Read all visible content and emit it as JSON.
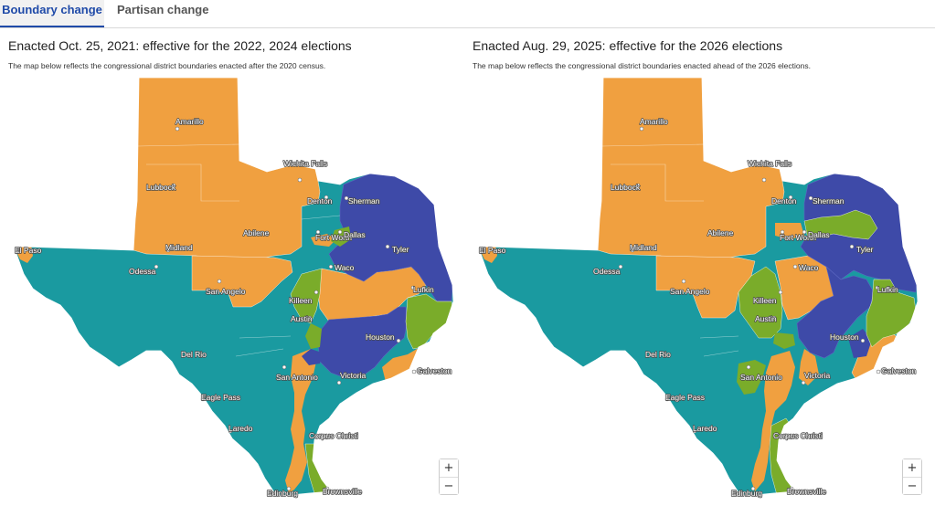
{
  "tabs": {
    "boundary": "Boundary change",
    "partisan": "Partisan change"
  },
  "left": {
    "title": "Enacted Oct. 25, 2021: effective for the 2022, 2024 elections",
    "note": "The map below reflects the congressional district boundaries enacted after the 2020 census."
  },
  "right": {
    "title": "Enacted Aug. 29, 2025: effective for the 2026 elections",
    "note": "The map below reflects the congressional district boundaries enacted ahead of the 2026 elections."
  },
  "cities": {
    "amarillo": "Amarillo",
    "wichita_falls": "Wichita Falls",
    "lubbock": "Lubbock",
    "denton": "Denton",
    "sherman": "Sherman",
    "abilene": "Abilene",
    "fort_worth": "Fort Worth",
    "dallas": "Dallas",
    "tyler": "Tyler",
    "el_paso": "El Paso",
    "midland": "Midland",
    "odessa": "Odessa",
    "waco": "Waco",
    "san_angelo": "San Angelo",
    "lufkin": "Lufkin",
    "killeen": "Killeen",
    "austin": "Austin",
    "houston": "Houston",
    "del_rio": "Del Rio",
    "san_antonio": "San Antonio",
    "victoria": "Victoria",
    "galveston": "Galveston",
    "eagle_pass": "Eagle Pass",
    "laredo": "Laredo",
    "corpus_christi": "Corpus Christi",
    "edinburg": "Edinburg",
    "brownsville": "Brownsville"
  },
  "zoom": {
    "in": "+",
    "out": "−"
  },
  "colors": {
    "orange": "#f0a040",
    "teal": "#1a9aa0",
    "blue": "#3e4aa8",
    "green": "#7aac2a"
  }
}
